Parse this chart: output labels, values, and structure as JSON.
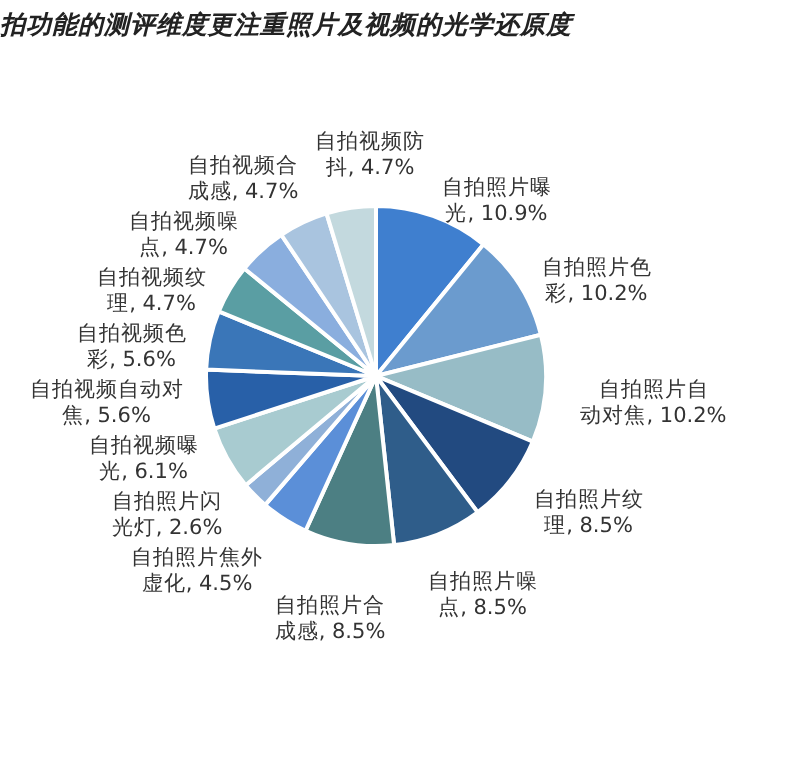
{
  "chart_data": {
    "type": "pie",
    "title": "拍功能的测评维度更注重照片及视频的光学还原度",
    "categories": [
      "自拍照片曝光",
      "自拍照片色彩",
      "自拍照片自动对焦",
      "自拍照片纹理",
      "自拍照片噪点",
      "自拍照片合成感",
      "自拍照片焦外虚化",
      "自拍照片闪光灯",
      "自拍视频曝光",
      "自拍视频自动对焦",
      "自拍视频色彩",
      "自拍视频纹理",
      "自拍视频噪点",
      "自拍视频合成感",
      "自拍视频防抖"
    ],
    "values": [
      10.9,
      10.2,
      10.2,
      8.5,
      8.5,
      8.5,
      4.5,
      2.6,
      6.1,
      5.6,
      5.6,
      4.7,
      4.7,
      4.7,
      4.7
    ],
    "value_labels": [
      "10.9%",
      "10.2%",
      "10.2%",
      "8.5%",
      "8.5%",
      "8.5%",
      "4.5%",
      "2.6%",
      "6.1%",
      "5.6%",
      "5.6%",
      "4.7%",
      "4.7%",
      "4.7%",
      "4.7%"
    ],
    "colors": [
      "#3f7fcf",
      "#6b9bce",
      "#97bcc6",
      "#224a80",
      "#2f5d8a",
      "#4c7f83",
      "#5b8fd8",
      "#8fb0d8",
      "#a8cbd0",
      "#2860a8",
      "#3a76b8",
      "#5a9ea3",
      "#8aaede",
      "#a9c4df",
      "#c3d9de"
    ]
  }
}
